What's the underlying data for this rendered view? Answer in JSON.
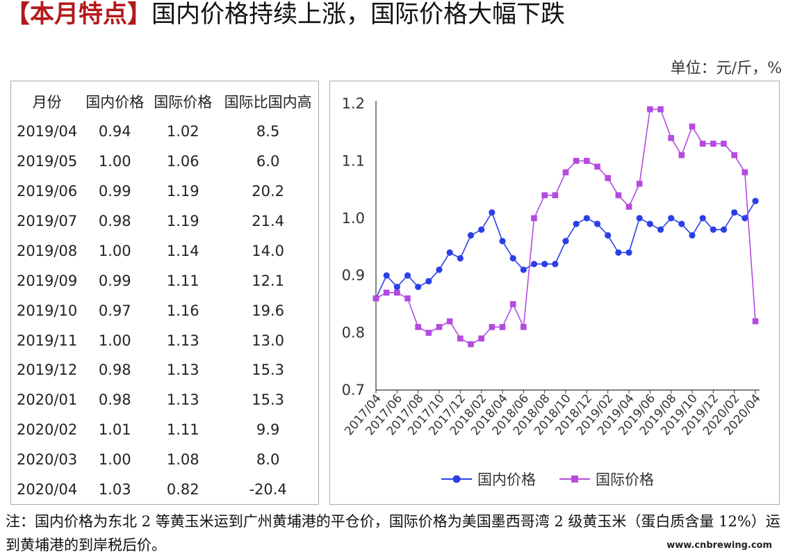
{
  "title": {
    "bracket_text": "【本月特点】",
    "main_text": "国内价格持续上涨，国际价格大幅下跌"
  },
  "unit_label": "单位：元/斤，%",
  "table": {
    "headers": [
      "月份",
      "国内价格",
      "国际价格",
      "国际比国内高"
    ],
    "rows": [
      [
        "2019/04",
        "0.94",
        "1.02",
        "8.5"
      ],
      [
        "2019/05",
        "1.00",
        "1.06",
        "6.0"
      ],
      [
        "2019/06",
        "0.99",
        "1.19",
        "20.2"
      ],
      [
        "2019/07",
        "0.98",
        "1.19",
        "21.4"
      ],
      [
        "2019/08",
        "1.00",
        "1.14",
        "14.0"
      ],
      [
        "2019/09",
        "0.99",
        "1.11",
        "12.1"
      ],
      [
        "2019/10",
        "0.97",
        "1.16",
        "19.6"
      ],
      [
        "2019/11",
        "1.00",
        "1.13",
        "13.0"
      ],
      [
        "2019/12",
        "0.98",
        "1.13",
        "15.3"
      ],
      [
        "2020/01",
        "0.98",
        "1.13",
        "15.3"
      ],
      [
        "2020/02",
        "1.01",
        "1.11",
        "9.9"
      ],
      [
        "2020/03",
        "1.00",
        "1.08",
        "8.0"
      ],
      [
        "2020/04",
        "1.03",
        "0.82",
        "-20.4"
      ]
    ]
  },
  "chart_data": {
    "type": "line",
    "title": "",
    "xlabel": "",
    "ylabel": "",
    "ylim": [
      0.7,
      1.2
    ],
    "yticks": [
      "0.7",
      "0.8",
      "0.9",
      "1.0",
      "1.1",
      "1.2"
    ],
    "grid": false,
    "legend_position": "bottom",
    "x": [
      "2017/04",
      "2017/05",
      "2017/06",
      "2017/07",
      "2017/08",
      "2017/09",
      "2017/10",
      "2017/11",
      "2017/12",
      "2018/01",
      "2018/02",
      "2018/03",
      "2018/04",
      "2018/05",
      "2018/06",
      "2018/07",
      "2018/08",
      "2018/09",
      "2018/10",
      "2018/11",
      "2018/12",
      "2019/01",
      "2019/02",
      "2019/03",
      "2019/04",
      "2019/05",
      "2019/06",
      "2019/07",
      "2019/08",
      "2019/09",
      "2019/10",
      "2019/11",
      "2019/12",
      "2020/01",
      "2020/02",
      "2020/03",
      "2020/04"
    ],
    "xtick_labels": [
      "2017/04",
      "2017/06",
      "2017/08",
      "2017/10",
      "2017/12",
      "2018/02",
      "2018/04",
      "2018/06",
      "2018/08",
      "2018/10",
      "2018/12",
      "2019/02",
      "2019/04",
      "2019/06",
      "2019/08",
      "2019/10",
      "2019/12",
      "2020/02",
      "2020/04"
    ],
    "series": [
      {
        "name": "国内价格",
        "color": "#2b3fe6",
        "marker": "circle",
        "values": [
          0.86,
          0.9,
          0.88,
          0.9,
          0.88,
          0.89,
          0.91,
          0.94,
          0.93,
          0.97,
          0.98,
          1.01,
          0.96,
          0.93,
          0.91,
          0.92,
          0.92,
          0.92,
          0.96,
          0.99,
          1.0,
          0.99,
          0.97,
          0.94,
          0.94,
          1.0,
          0.99,
          0.98,
          1.0,
          0.99,
          0.97,
          1.0,
          0.98,
          0.98,
          1.01,
          1.0,
          1.03
        ]
      },
      {
        "name": "国际价格",
        "color": "#b44ae0",
        "marker": "square",
        "values": [
          0.86,
          0.87,
          0.87,
          0.86,
          0.81,
          0.8,
          0.81,
          0.82,
          0.79,
          0.78,
          0.79,
          0.81,
          0.81,
          0.85,
          0.81,
          1.0,
          1.04,
          1.04,
          1.08,
          1.1,
          1.1,
          1.09,
          1.07,
          1.04,
          1.02,
          1.06,
          1.19,
          1.19,
          1.14,
          1.11,
          1.16,
          1.13,
          1.13,
          1.13,
          1.11,
          1.08,
          0.82
        ]
      }
    ]
  },
  "note": "注：国内价格为东北 2 等黄玉米运到广州黄埔港的平仓价，国际价格为美国墨西哥湾 2 级黄玉米（蛋白质含量 12%）运到黄埔港的到岸税后价。",
  "watermark": "www.cnbrewing.com"
}
